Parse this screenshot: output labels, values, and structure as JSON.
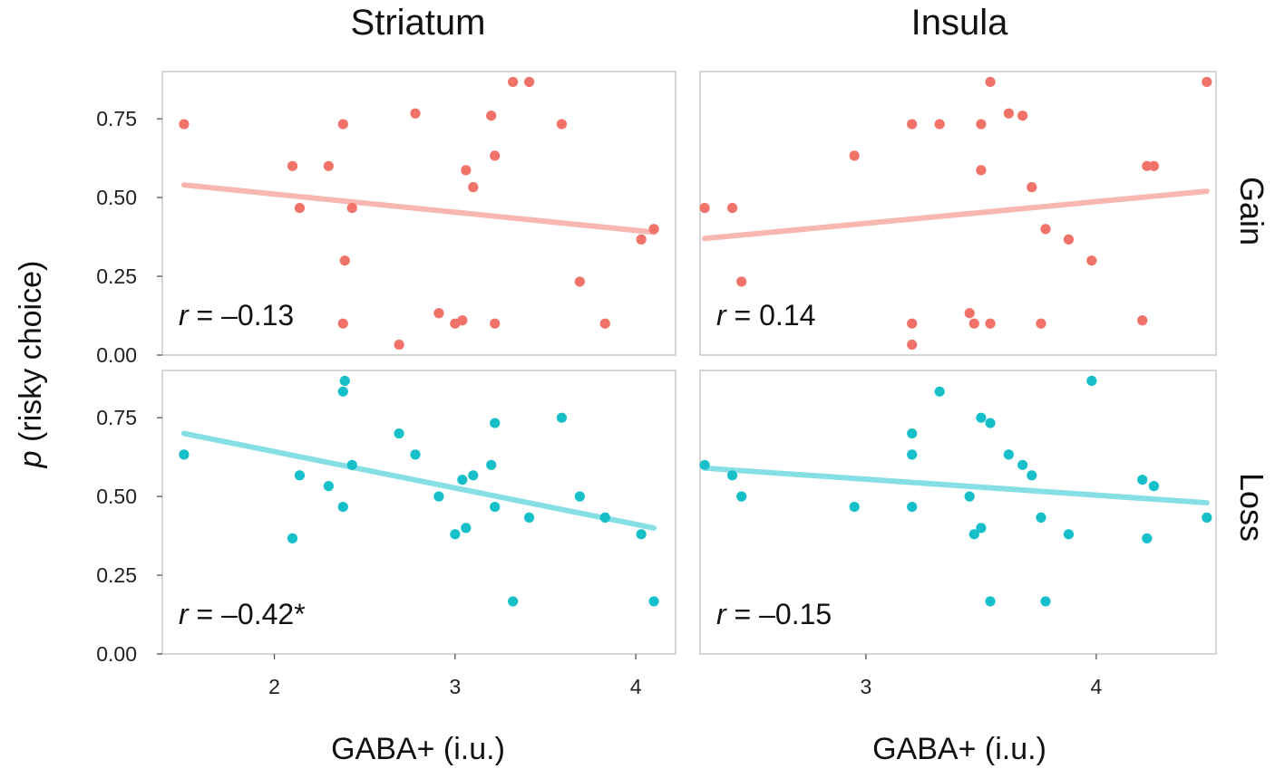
{
  "chart_data": {
    "type": "scatter",
    "column_titles": [
      "Striatum",
      "Insula"
    ],
    "row_labels": [
      "Gain",
      "Loss"
    ],
    "ylabel_italic": "p",
    "ylabel_rest": " (risky choice)",
    "xlabel": "GABA+ (i.u.)",
    "ylim": [
      0,
      0.9
    ],
    "yticks": [
      "0.00",
      "0.25",
      "0.50",
      "0.75"
    ],
    "ytick_values": [
      0,
      0.25,
      0.5,
      0.75
    ],
    "colors": {
      "gain": "#f07268",
      "gain_fit": "#f8b7b1",
      "loss": "#17bfc9",
      "loss_fit": "#86dfe4"
    },
    "columns": [
      {
        "name": "Striatum",
        "xlim": [
          1.38,
          4.22
        ],
        "xticks": [
          "2",
          "3",
          "4"
        ],
        "xtick_values": [
          2,
          3,
          4
        ]
      },
      {
        "name": "Insula",
        "xlim": [
          2.28,
          4.52
        ],
        "xticks": [
          "3",
          "4"
        ],
        "xtick_values": [
          3,
          4
        ]
      }
    ],
    "panels": [
      {
        "column": "Striatum",
        "row": "Gain",
        "series_color": "gain",
        "r_italic": "r",
        "r_text": " = –0.13",
        "fit": {
          "x": [
            1.5,
            4.1
          ],
          "y": [
            0.54,
            0.39
          ]
        },
        "points": [
          {
            "x": 1.5,
            "y": 0.733
          },
          {
            "x": 2.1,
            "y": 0.6
          },
          {
            "x": 2.14,
            "y": 0.467
          },
          {
            "x": 2.3,
            "y": 0.6
          },
          {
            "x": 2.38,
            "y": 0.733
          },
          {
            "x": 2.39,
            "y": 0.3
          },
          {
            "x": 2.38,
            "y": 0.1
          },
          {
            "x": 2.43,
            "y": 0.467
          },
          {
            "x": 2.69,
            "y": 0.033
          },
          {
            "x": 2.78,
            "y": 0.767
          },
          {
            "x": 2.91,
            "y": 0.133
          },
          {
            "x": 3.0,
            "y": 0.1
          },
          {
            "x": 3.04,
            "y": 0.11
          },
          {
            "x": 3.06,
            "y": 0.587
          },
          {
            "x": 3.1,
            "y": 0.533
          },
          {
            "x": 3.2,
            "y": 0.76
          },
          {
            "x": 3.22,
            "y": 0.633
          },
          {
            "x": 3.22,
            "y": 0.1
          },
          {
            "x": 3.32,
            "y": 0.867
          },
          {
            "x": 3.41,
            "y": 0.867
          },
          {
            "x": 3.59,
            "y": 0.733
          },
          {
            "x": 3.69,
            "y": 0.233
          },
          {
            "x": 3.83,
            "y": 0.1
          },
          {
            "x": 4.03,
            "y": 0.367
          },
          {
            "x": 4.1,
            "y": 0.4
          }
        ]
      },
      {
        "column": "Insula",
        "row": "Gain",
        "series_color": "gain",
        "r_italic": "r",
        "r_text": " = 0.14",
        "fit": {
          "x": [
            2.3,
            4.48
          ],
          "y": [
            0.37,
            0.52
          ]
        },
        "points": [
          {
            "x": 2.3,
            "y": 0.467
          },
          {
            "x": 2.42,
            "y": 0.467
          },
          {
            "x": 2.46,
            "y": 0.233
          },
          {
            "x": 2.95,
            "y": 0.633
          },
          {
            "x": 3.2,
            "y": 0.733
          },
          {
            "x": 3.2,
            "y": 0.1
          },
          {
            "x": 3.2,
            "y": 0.033
          },
          {
            "x": 3.32,
            "y": 0.733
          },
          {
            "x": 3.45,
            "y": 0.133
          },
          {
            "x": 3.47,
            "y": 0.1
          },
          {
            "x": 3.5,
            "y": 0.733
          },
          {
            "x": 3.5,
            "y": 0.587
          },
          {
            "x": 3.54,
            "y": 0.867
          },
          {
            "x": 3.54,
            "y": 0.1
          },
          {
            "x": 3.62,
            "y": 0.767
          },
          {
            "x": 3.68,
            "y": 0.76
          },
          {
            "x": 3.72,
            "y": 0.533
          },
          {
            "x": 3.76,
            "y": 0.1
          },
          {
            "x": 3.78,
            "y": 0.4
          },
          {
            "x": 3.88,
            "y": 0.367
          },
          {
            "x": 3.98,
            "y": 0.3
          },
          {
            "x": 4.2,
            "y": 0.11
          },
          {
            "x": 4.22,
            "y": 0.6
          },
          {
            "x": 4.25,
            "y": 0.6
          },
          {
            "x": 4.48,
            "y": 0.867
          }
        ]
      },
      {
        "column": "Striatum",
        "row": "Loss",
        "series_color": "loss",
        "r_italic": "r",
        "r_text": " = –0.42*",
        "fit": {
          "x": [
            1.5,
            4.1
          ],
          "y": [
            0.7,
            0.4
          ]
        },
        "points": [
          {
            "x": 1.5,
            "y": 0.633
          },
          {
            "x": 2.1,
            "y": 0.367
          },
          {
            "x": 2.14,
            "y": 0.567
          },
          {
            "x": 2.3,
            "y": 0.533
          },
          {
            "x": 2.38,
            "y": 0.833
          },
          {
            "x": 2.39,
            "y": 0.867
          },
          {
            "x": 2.38,
            "y": 0.467
          },
          {
            "x": 2.43,
            "y": 0.6
          },
          {
            "x": 2.69,
            "y": 0.7
          },
          {
            "x": 2.78,
            "y": 0.633
          },
          {
            "x": 2.91,
            "y": 0.5
          },
          {
            "x": 3.0,
            "y": 0.38
          },
          {
            "x": 3.04,
            "y": 0.553
          },
          {
            "x": 3.06,
            "y": 0.4
          },
          {
            "x": 3.1,
            "y": 0.567
          },
          {
            "x": 3.2,
            "y": 0.6
          },
          {
            "x": 3.22,
            "y": 0.733
          },
          {
            "x": 3.22,
            "y": 0.467
          },
          {
            "x": 3.32,
            "y": 0.167
          },
          {
            "x": 3.41,
            "y": 0.433
          },
          {
            "x": 3.59,
            "y": 0.75
          },
          {
            "x": 3.69,
            "y": 0.5
          },
          {
            "x": 3.83,
            "y": 0.433
          },
          {
            "x": 4.03,
            "y": 0.38
          },
          {
            "x": 4.1,
            "y": 0.167
          }
        ]
      },
      {
        "column": "Insula",
        "row": "Loss",
        "series_color": "loss",
        "r_italic": "r",
        "r_text": " = –0.15",
        "fit": {
          "x": [
            2.3,
            4.48
          ],
          "y": [
            0.59,
            0.48
          ]
        },
        "points": [
          {
            "x": 2.3,
            "y": 0.6
          },
          {
            "x": 2.42,
            "y": 0.567
          },
          {
            "x": 2.46,
            "y": 0.5
          },
          {
            "x": 2.95,
            "y": 0.467
          },
          {
            "x": 3.2,
            "y": 0.7
          },
          {
            "x": 3.2,
            "y": 0.633
          },
          {
            "x": 3.2,
            "y": 0.467
          },
          {
            "x": 3.32,
            "y": 0.833
          },
          {
            "x": 3.45,
            "y": 0.5
          },
          {
            "x": 3.47,
            "y": 0.38
          },
          {
            "x": 3.5,
            "y": 0.75
          },
          {
            "x": 3.5,
            "y": 0.4
          },
          {
            "x": 3.54,
            "y": 0.733
          },
          {
            "x": 3.54,
            "y": 0.167
          },
          {
            "x": 3.62,
            "y": 0.633
          },
          {
            "x": 3.68,
            "y": 0.6
          },
          {
            "x": 3.72,
            "y": 0.567
          },
          {
            "x": 3.76,
            "y": 0.433
          },
          {
            "x": 3.78,
            "y": 0.167
          },
          {
            "x": 3.88,
            "y": 0.38
          },
          {
            "x": 3.98,
            "y": 0.867
          },
          {
            "x": 4.2,
            "y": 0.553
          },
          {
            "x": 4.22,
            "y": 0.367
          },
          {
            "x": 4.25,
            "y": 0.533
          },
          {
            "x": 4.48,
            "y": 0.433
          }
        ]
      }
    ]
  }
}
